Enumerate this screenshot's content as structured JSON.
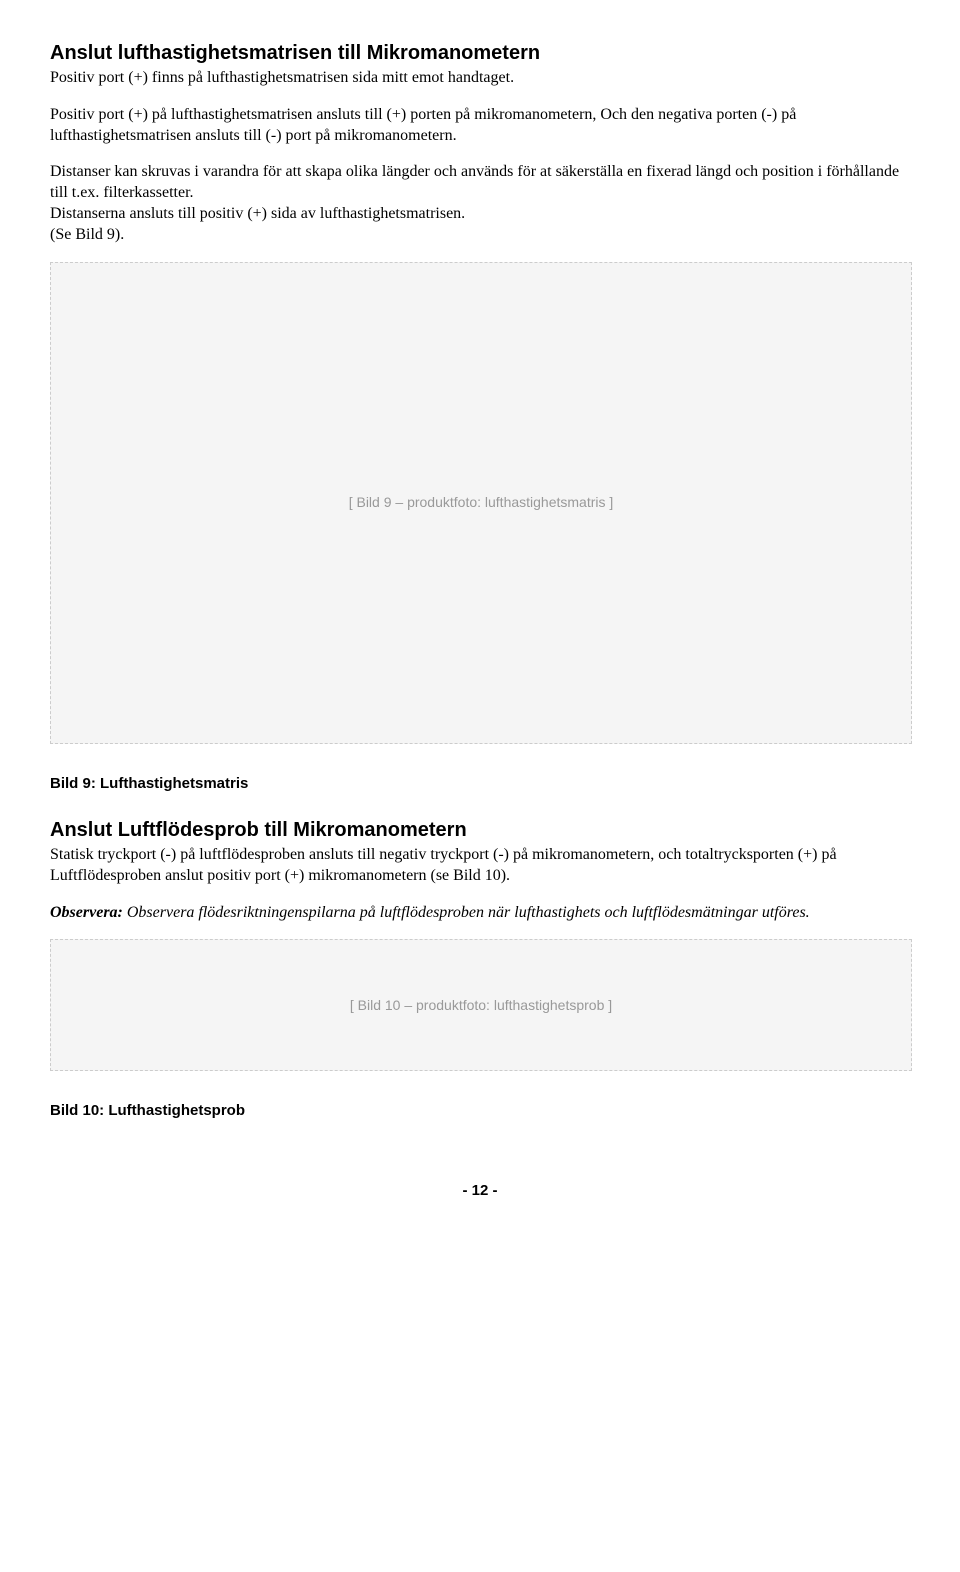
{
  "section1": {
    "heading": "Anslut lufthastighetsmatrisen till Mikromanometern",
    "p1": "Positiv port (+) finns på lufthastighetsmatrisen sida mitt emot handtaget.",
    "p2": "Positiv port (+) på lufthastighetsmatrisen ansluts till (+) porten på mikromanometern, Och den negativa porten (-) på lufthastighetsmatrisen ansluts till (-) port på mikromanometern.",
    "p3": "Distanser kan skruvas i varandra för att skapa olika längder och används för at säkerställa en fixerad längd och position i förhållande till t.ex. filterkassetter.",
    "p4": "Distanserna ansluts till positiv (+) sida av lufthastighetsmatrisen.",
    "p5": "(Se Bild 9)."
  },
  "figure9": {
    "placeholder": "[ Bild 9 – produktfoto: lufthastighetsmatris ]",
    "caption": "Bild 9: Lufthastighetsmatris"
  },
  "section2": {
    "heading": "Anslut Luftflödesprob till Mikromanometern",
    "p1": "Statisk tryckport (-) på luftflödesproben ansluts till negativ tryckport (-) på mikromanometern, och totaltrycksporten (+) på Luftflödesproben anslut positiv port (+) mikromanometern (se Bild 10).",
    "note_label": "Observera:",
    "note_body": " Observera flödesriktningenspilarna på luftflödesproben när lufthastighets och luftflödesmätningar utföres."
  },
  "figure10": {
    "placeholder": "[ Bild 10 – produktfoto: lufthastighetsprob ]",
    "caption": "Bild 10: Lufthastighetsprob"
  },
  "footer": {
    "page": "- 12 -"
  }
}
